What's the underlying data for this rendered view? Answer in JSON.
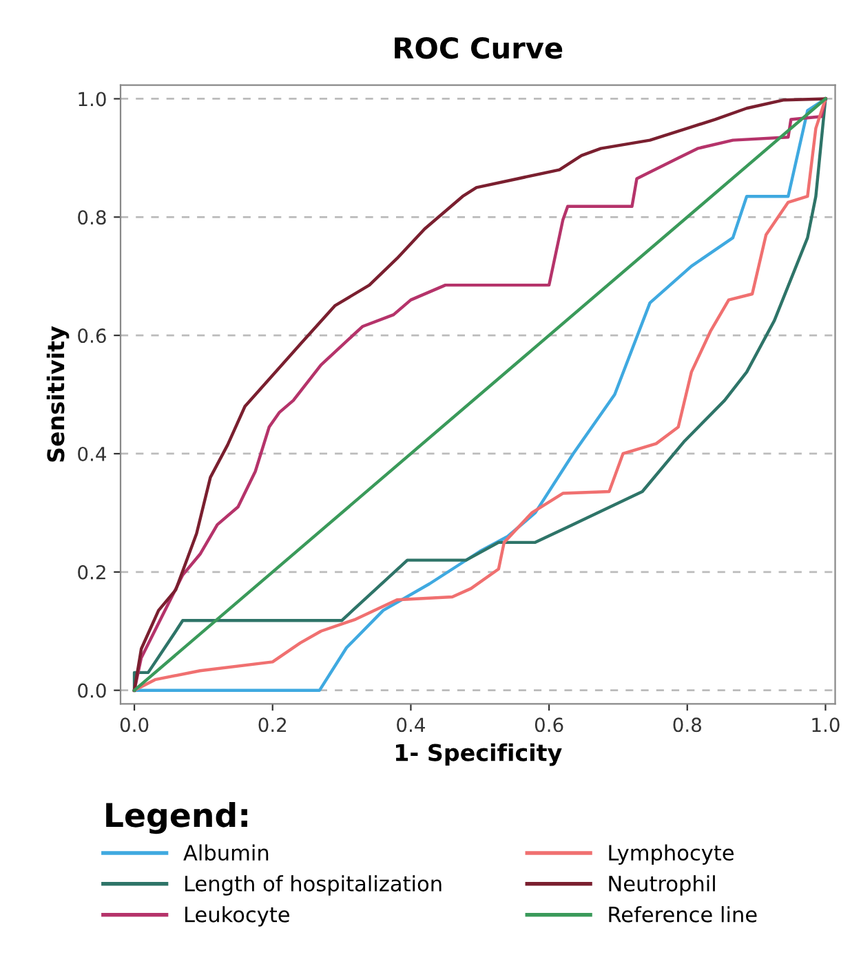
{
  "chart_data": {
    "type": "line",
    "title": "ROC Curve",
    "xlabel": "1- Specificity",
    "ylabel": "Sensitivity",
    "legend_title": "Legend:",
    "legend": "bottom",
    "grid": "y",
    "marker": "none",
    "line_style": "solid",
    "xlim": [
      -0.02,
      1.014
    ],
    "ylim": [
      -0.023,
      1.023
    ],
    "xticks": [
      {
        "value": 0,
        "label": "0.0"
      },
      {
        "value": 0.2,
        "label": "0.2"
      },
      {
        "value": 0.4,
        "label": "0.4"
      },
      {
        "value": 0.6,
        "label": "0.6"
      },
      {
        "value": 0.8,
        "label": "0.8"
      },
      {
        "value": 1,
        "label": "1.0"
      }
    ],
    "yticks": [
      {
        "value": 0,
        "label": "0.0"
      },
      {
        "value": 0.2,
        "label": "0.2"
      },
      {
        "value": 0.4,
        "label": "0.4"
      },
      {
        "value": 0.6,
        "label": "0.6"
      },
      {
        "value": 0.8,
        "label": "0.8"
      },
      {
        "value": 1,
        "label": "1.0"
      }
    ],
    "series": [
      {
        "name": "Albumin",
        "color": "#3fa9e0",
        "x": [
          0,
          0.01,
          0.268,
          0.307,
          0.36,
          0.427,
          0.5,
          0.54,
          0.58,
          0.635,
          0.695,
          0.746,
          0.806,
          0.866,
          0.886,
          0.946,
          0.974,
          1
        ],
        "values": [
          0,
          0,
          0,
          0.072,
          0.135,
          0.18,
          0.235,
          0.26,
          0.3,
          0.4,
          0.5,
          0.655,
          0.717,
          0.765,
          0.835,
          0.835,
          0.98,
          1
        ]
      },
      {
        "name": "Length of hospitalization",
        "color": "#2e7468",
        "x": [
          0,
          0,
          0.02,
          0.06,
          0.07,
          0.3,
          0.395,
          0.48,
          0.527,
          0.58,
          0.647,
          0.735,
          0.795,
          0.854,
          0.886,
          0.926,
          0.974,
          0.986,
          1
        ],
        "values": [
          0,
          0.03,
          0.03,
          0.1,
          0.118,
          0.118,
          0.22,
          0.22,
          0.25,
          0.25,
          0.287,
          0.336,
          0.42,
          0.49,
          0.538,
          0.625,
          0.765,
          0.835,
          1
        ]
      },
      {
        "name": "Leukocyte",
        "color": "#b5336a",
        "x": [
          0,
          0.01,
          0.04,
          0.07,
          0.095,
          0.12,
          0.15,
          0.175,
          0.195,
          0.21,
          0.23,
          0.27,
          0.33,
          0.375,
          0.4,
          0.45,
          0.6,
          0.62,
          0.627,
          0.72,
          0.727,
          0.787,
          0.815,
          0.866,
          0.946,
          0.95,
          0.994,
          1
        ],
        "values": [
          0,
          0.055,
          0.125,
          0.195,
          0.23,
          0.28,
          0.31,
          0.37,
          0.445,
          0.47,
          0.49,
          0.55,
          0.615,
          0.635,
          0.66,
          0.685,
          0.685,
          0.795,
          0.818,
          0.818,
          0.865,
          0.9,
          0.916,
          0.93,
          0.935,
          0.965,
          0.97,
          1
        ]
      },
      {
        "name": "Lymphocyte",
        "color": "#f07070",
        "x": [
          0,
          0.03,
          0.095,
          0.2,
          0.24,
          0.27,
          0.32,
          0.38,
          0.46,
          0.487,
          0.527,
          0.535,
          0.575,
          0.62,
          0.687,
          0.707,
          0.755,
          0.787,
          0.806,
          0.834,
          0.86,
          0.894,
          0.914,
          0.946,
          0.974,
          0.986,
          1
        ],
        "values": [
          0,
          0.018,
          0.033,
          0.048,
          0.08,
          0.1,
          0.12,
          0.153,
          0.158,
          0.172,
          0.205,
          0.25,
          0.3,
          0.333,
          0.336,
          0.4,
          0.417,
          0.445,
          0.538,
          0.608,
          0.66,
          0.67,
          0.77,
          0.825,
          0.835,
          0.95,
          1
        ]
      },
      {
        "name": "Neutrophil",
        "color": "#7a1f2f",
        "x": [
          0,
          0.01,
          0.035,
          0.06,
          0.09,
          0.11,
          0.135,
          0.16,
          0.24,
          0.29,
          0.34,
          0.38,
          0.42,
          0.475,
          0.495,
          0.555,
          0.615,
          0.647,
          0.675,
          0.746,
          0.8,
          0.84,
          0.886,
          0.94,
          1
        ],
        "values": [
          0,
          0.07,
          0.135,
          0.17,
          0.265,
          0.36,
          0.415,
          0.48,
          0.585,
          0.65,
          0.685,
          0.73,
          0.78,
          0.835,
          0.85,
          0.865,
          0.88,
          0.904,
          0.916,
          0.93,
          0.95,
          0.965,
          0.984,
          0.998,
          1
        ]
      },
      {
        "name": "Reference line",
        "color": "#3a9a5a",
        "x": [
          0,
          1
        ],
        "values": [
          0,
          1
        ]
      }
    ]
  }
}
